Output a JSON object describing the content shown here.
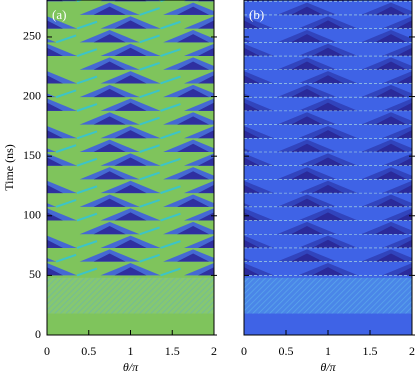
{
  "chart_data": [
    {
      "type": "heatmap",
      "panel_label": "(a)",
      "xlabel": "θ/π",
      "ylabel": "Time (ns)",
      "xlim": [
        0,
        2
      ],
      "xticks": [
        0,
        0.5,
        1,
        1.5,
        2
      ],
      "ylim": [
        0,
        281
      ],
      "yticks": [
        0,
        50,
        100,
        150,
        200,
        250
      ]
    },
    {
      "type": "heatmap",
      "panel_label": "(b)",
      "xlabel": "θ/π",
      "xlim": [
        0,
        2
      ],
      "xticks": [
        0,
        0.5,
        1,
        1.5,
        2
      ],
      "ylim": [
        0,
        281
      ],
      "yticks": [
        0,
        50,
        100,
        150,
        200,
        250
      ]
    }
  ]
}
